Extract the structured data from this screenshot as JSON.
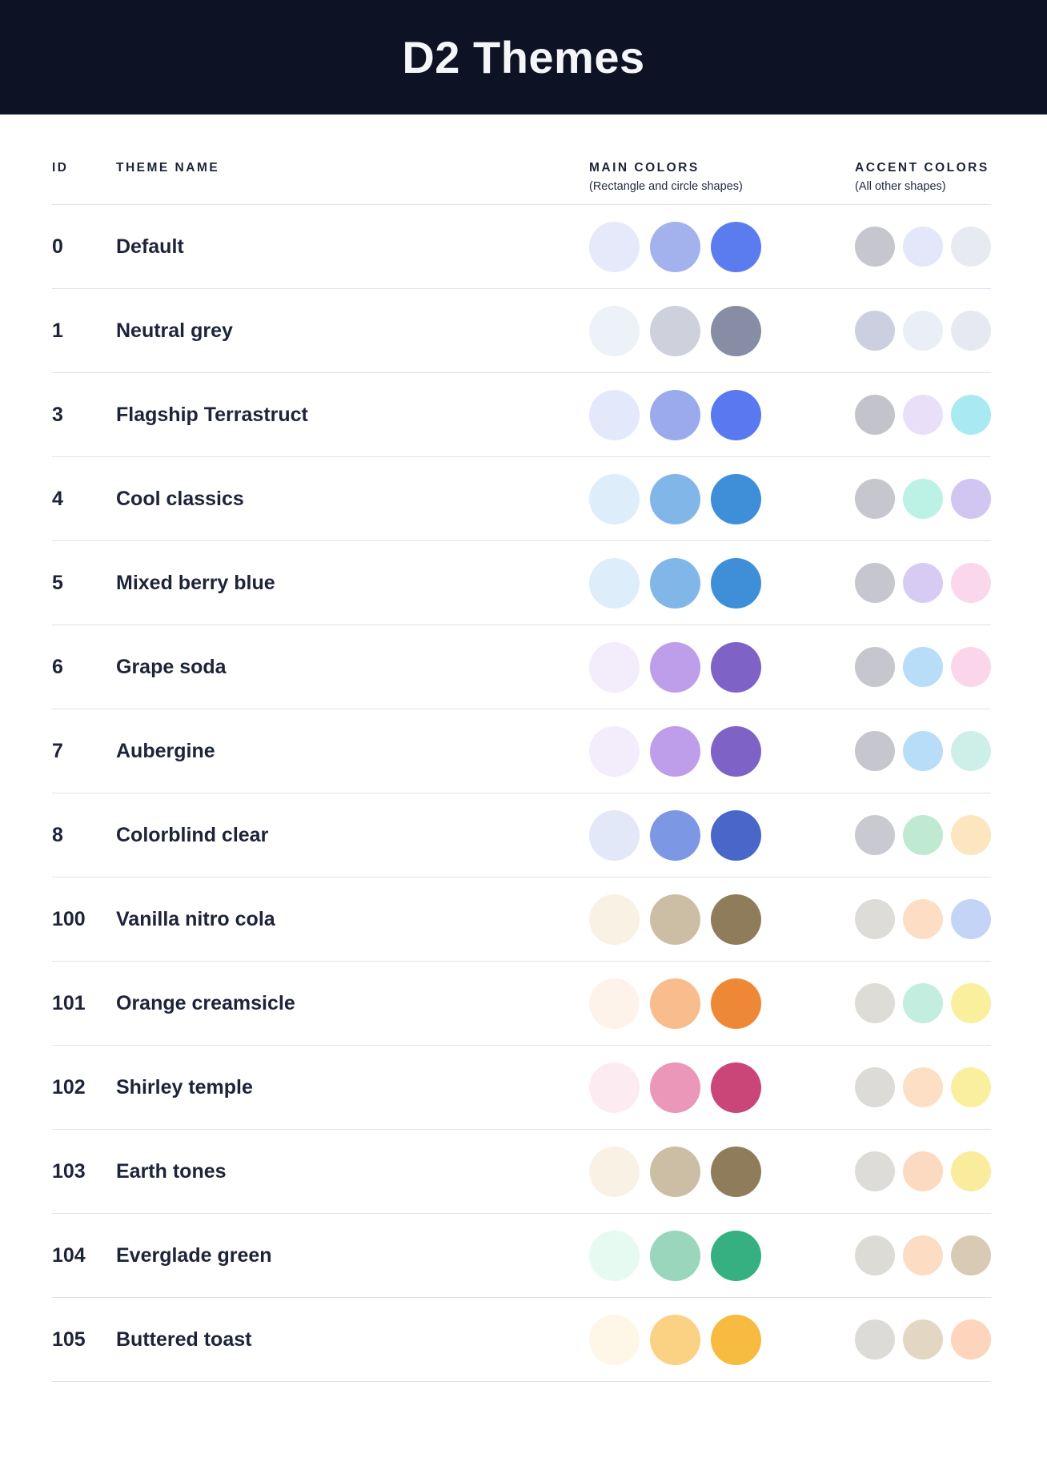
{
  "page": {
    "title": "D2 Themes"
  },
  "colors": {
    "header_bg": "#0d1224",
    "title_color": "#f5f6fa",
    "text_color": "#1d2438",
    "divider": "#dfe2ee"
  },
  "table": {
    "columns": {
      "id_label": "ID",
      "name_label": "THEME NAME",
      "main_label": "MAIN COLORS",
      "main_sublabel": "(Rectangle and circle shapes)",
      "accent_label": "ACCENT COLORS",
      "accent_sublabel": "(All other shapes)"
    },
    "rows": [
      {
        "id": "0",
        "name": "Default",
        "main": [
          "#e5e9fa",
          "#a3b2ec",
          "#5b7cef"
        ],
        "accent": [
          "#c5c6ce",
          "#e3e7f9",
          "#e7eaf1"
        ]
      },
      {
        "id": "1",
        "name": "Neutral grey",
        "main": [
          "#edf1f8",
          "#ced1dc",
          "#878da4"
        ],
        "accent": [
          "#cccfdf",
          "#eaeef6",
          "#e6e9f2"
        ]
      },
      {
        "id": "3",
        "name": "Flagship Terrastruct",
        "main": [
          "#e4e8fb",
          "#9aaaec",
          "#5a78f0"
        ],
        "accent": [
          "#c3c4cb",
          "#e9dff8",
          "#a9e9f2"
        ]
      },
      {
        "id": "4",
        "name": "Cool classics",
        "main": [
          "#deedfa",
          "#81b6e9",
          "#3e8fd8"
        ],
        "accent": [
          "#c5c6ce",
          "#bcf1e5",
          "#d1c5f1"
        ]
      },
      {
        "id": "5",
        "name": "Mixed berry blue",
        "main": [
          "#deedfa",
          "#81b6e9",
          "#3e8fd8"
        ],
        "accent": [
          "#c5c6ce",
          "#d7cbf4",
          "#fad7ea"
        ]
      },
      {
        "id": "6",
        "name": "Grape soda",
        "main": [
          "#f2ecfb",
          "#be9dea",
          "#7f62c5"
        ],
        "accent": [
          "#c5c6ce",
          "#b7ddf8",
          "#fbd6ea"
        ]
      },
      {
        "id": "7",
        "name": "Aubergine",
        "main": [
          "#f2ecfb",
          "#be9dea",
          "#7f62c5"
        ],
        "accent": [
          "#c5c6ce",
          "#b7ddf8",
          "#ceefe7"
        ]
      },
      {
        "id": "8",
        "name": "Colorblind clear",
        "main": [
          "#e3e8f9",
          "#7c97e4",
          "#4867c8"
        ],
        "accent": [
          "#c8c9d1",
          "#c0e9d1",
          "#fbe6bf"
        ]
      },
      {
        "id": "100",
        "name": "Vanilla nitro cola",
        "main": [
          "#faf1e5",
          "#ccbea4",
          "#8f7c5a"
        ],
        "accent": [
          "#dddcd8",
          "#fddec4",
          "#c4d4f7"
        ]
      },
      {
        "id": "101",
        "name": "Orange creamsicle",
        "main": [
          "#fef3eb",
          "#f8bc8d",
          "#ee8836"
        ],
        "accent": [
          "#dddcd7",
          "#c3eddf",
          "#faef9d"
        ]
      },
      {
        "id": "102",
        "name": "Shirley temple",
        "main": [
          "#fcecf2",
          "#ea97b9",
          "#ca4678"
        ],
        "accent": [
          "#dddbd7",
          "#fddfc5",
          "#f9ef9f"
        ]
      },
      {
        "id": "103",
        "name": "Earth tones",
        "main": [
          "#faf1e5",
          "#ccbea4",
          "#8f7c5a"
        ],
        "accent": [
          "#dddcd8",
          "#fcdac1",
          "#faec9d"
        ]
      },
      {
        "id": "104",
        "name": "Everglade green",
        "main": [
          "#e7faf2",
          "#99d6bb",
          "#36b081"
        ],
        "accent": [
          "#dcdbd6",
          "#fcdcc3",
          "#d9cab4"
        ]
      },
      {
        "id": "105",
        "name": "Buttered toast",
        "main": [
          "#fef7e8",
          "#fbd184",
          "#f7bb42"
        ],
        "accent": [
          "#dcdbd7",
          "#e3d6c3",
          "#fcd5bc"
        ]
      }
    ]
  }
}
